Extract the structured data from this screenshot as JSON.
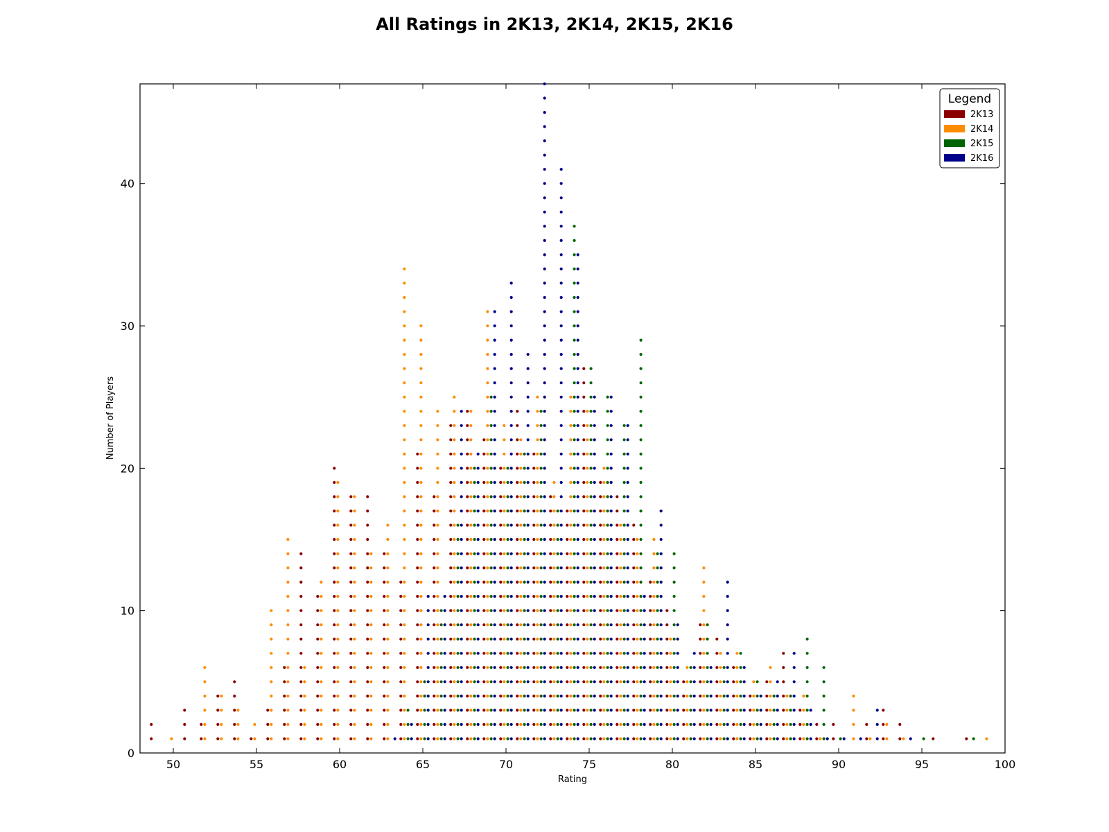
{
  "chart_data": {
    "type": "scatter",
    "title": "All Ratings in 2K13, 2K14, 2K15, 2K16",
    "xlabel": "Rating",
    "ylabel": "Number of Players",
    "xlim": [
      48,
      100
    ],
    "ylim": [
      0,
      47
    ],
    "x_ticks": [
      50,
      55,
      60,
      65,
      70,
      75,
      80,
      85,
      90,
      95,
      100
    ],
    "y_ticks": [
      0,
      10,
      20,
      30,
      40
    ],
    "grid": false,
    "legend": {
      "title": "Legend",
      "placement": "top-right"
    },
    "marker": "stacked dots: each rating has one dot per player, from 1 up to the count",
    "series": [
      {
        "name": "2K13",
        "color": "#8b0000",
        "points": [
          [
            49,
            2
          ],
          [
            51,
            3
          ],
          [
            52,
            2
          ],
          [
            53,
            4
          ],
          [
            54,
            5
          ],
          [
            55,
            1
          ],
          [
            56,
            3
          ],
          [
            57,
            6
          ],
          [
            58,
            14
          ],
          [
            59,
            11
          ],
          [
            60,
            20
          ],
          [
            61,
            18
          ],
          [
            62,
            18
          ],
          [
            63,
            14
          ],
          [
            64,
            12
          ],
          [
            65,
            21
          ],
          [
            66,
            18
          ],
          [
            67,
            23
          ],
          [
            68,
            24
          ],
          [
            69,
            22
          ],
          [
            70,
            20
          ],
          [
            71,
            24
          ],
          [
            72,
            21
          ],
          [
            73,
            18
          ],
          [
            74,
            17
          ],
          [
            75,
            27
          ],
          [
            76,
            19
          ],
          [
            77,
            18
          ],
          [
            78,
            16
          ],
          [
            79,
            12
          ],
          [
            80,
            10
          ],
          [
            81,
            5
          ],
          [
            82,
            9
          ],
          [
            83,
            8
          ],
          [
            84,
            6
          ],
          [
            85,
            4
          ],
          [
            86,
            5
          ],
          [
            87,
            7
          ],
          [
            88,
            3
          ],
          [
            89,
            2
          ],
          [
            90,
            2
          ],
          [
            92,
            2
          ],
          [
            93,
            3
          ],
          [
            94,
            2
          ],
          [
            96,
            1
          ],
          [
            98,
            1
          ]
        ]
      },
      {
        "name": "2K14",
        "color": "#ff8c00",
        "points": [
          [
            50,
            1
          ],
          [
            52,
            6
          ],
          [
            53,
            4
          ],
          [
            54,
            3
          ],
          [
            55,
            2
          ],
          [
            56,
            10
          ],
          [
            57,
            15
          ],
          [
            58,
            6
          ],
          [
            59,
            12
          ],
          [
            60,
            19
          ],
          [
            61,
            18
          ],
          [
            62,
            14
          ],
          [
            63,
            16
          ],
          [
            64,
            34
          ],
          [
            65,
            30
          ],
          [
            66,
            24
          ],
          [
            67,
            25
          ],
          [
            68,
            24
          ],
          [
            69,
            31
          ],
          [
            70,
            23
          ],
          [
            71,
            22
          ],
          [
            72,
            25
          ],
          [
            73,
            19
          ],
          [
            74,
            25
          ],
          [
            75,
            24
          ],
          [
            76,
            20
          ],
          [
            77,
            16
          ],
          [
            78,
            15
          ],
          [
            79,
            15
          ],
          [
            80,
            8
          ],
          [
            81,
            6
          ],
          [
            82,
            13
          ],
          [
            83,
            7
          ],
          [
            84,
            7
          ],
          [
            85,
            5
          ],
          [
            86,
            6
          ],
          [
            87,
            4
          ],
          [
            88,
            4
          ],
          [
            89,
            1
          ],
          [
            91,
            4
          ],
          [
            92,
            1
          ],
          [
            93,
            2
          ],
          [
            94,
            1
          ],
          [
            99,
            1
          ]
        ]
      },
      {
        "name": "2K15",
        "color": "#006400",
        "points": [
          [
            64,
            3
          ],
          [
            65,
            5
          ],
          [
            66,
            10
          ],
          [
            67,
            16
          ],
          [
            68,
            20
          ],
          [
            69,
            25
          ],
          [
            70,
            20
          ],
          [
            71,
            21
          ],
          [
            72,
            24
          ],
          [
            73,
            17
          ],
          [
            74,
            37
          ],
          [
            75,
            27
          ],
          [
            76,
            25
          ],
          [
            77,
            23
          ],
          [
            78,
            29
          ],
          [
            79,
            14
          ],
          [
            80,
            14
          ],
          [
            81,
            6
          ],
          [
            82,
            9
          ],
          [
            83,
            6
          ],
          [
            84,
            7
          ],
          [
            85,
            5
          ],
          [
            86,
            4
          ],
          [
            87,
            4
          ],
          [
            88,
            8
          ],
          [
            89,
            6
          ],
          [
            90,
            1
          ],
          [
            95,
            1
          ],
          [
            98,
            1
          ]
        ]
      },
      {
        "name": "2K16",
        "color": "#00008b",
        "points": [
          [
            63,
            1
          ],
          [
            64,
            2
          ],
          [
            65,
            11
          ],
          [
            66,
            11
          ],
          [
            67,
            24
          ],
          [
            68,
            21
          ],
          [
            69,
            31
          ],
          [
            70,
            33
          ],
          [
            71,
            28
          ],
          [
            72,
            47
          ],
          [
            73,
            41
          ],
          [
            74,
            35
          ],
          [
            75,
            25
          ],
          [
            76,
            25
          ],
          [
            77,
            23
          ],
          [
            78,
            11
          ],
          [
            79,
            17
          ],
          [
            80,
            9
          ],
          [
            81,
            7
          ],
          [
            82,
            6
          ],
          [
            83,
            12
          ],
          [
            84,
            6
          ],
          [
            85,
            4
          ],
          [
            86,
            5
          ],
          [
            87,
            7
          ],
          [
            88,
            3
          ],
          [
            89,
            1
          ],
          [
            90,
            1
          ],
          [
            91,
            1
          ],
          [
            92,
            3
          ],
          [
            94,
            1
          ]
        ]
      }
    ]
  }
}
